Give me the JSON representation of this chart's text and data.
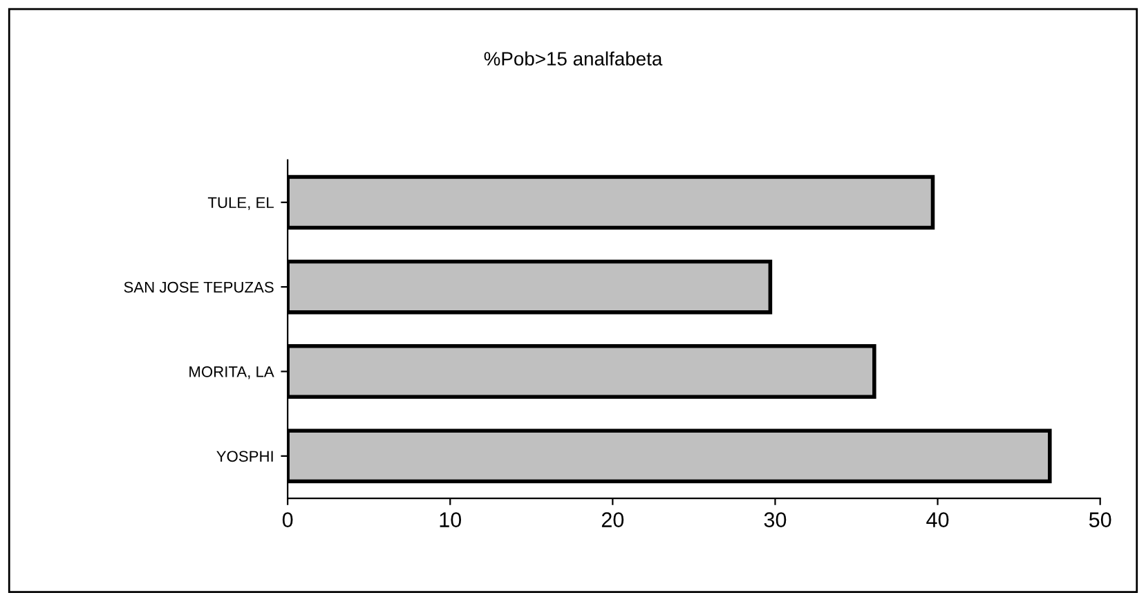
{
  "chart_data": {
    "type": "bar",
    "orientation": "horizontal",
    "title": "%Pob>15 analfabeta",
    "categories": [
      "TULE, EL",
      "SAN JOSE TEPUZAS",
      "MORITA, LA",
      "YOSPHI"
    ],
    "values": [
      39.7,
      29.7,
      36.1,
      46.9
    ],
    "color": "#c0c0c0",
    "xlim": [
      0,
      50
    ],
    "xticks": [
      0,
      10,
      20,
      30,
      40,
      50
    ],
    "grid": false,
    "legend": false
  }
}
